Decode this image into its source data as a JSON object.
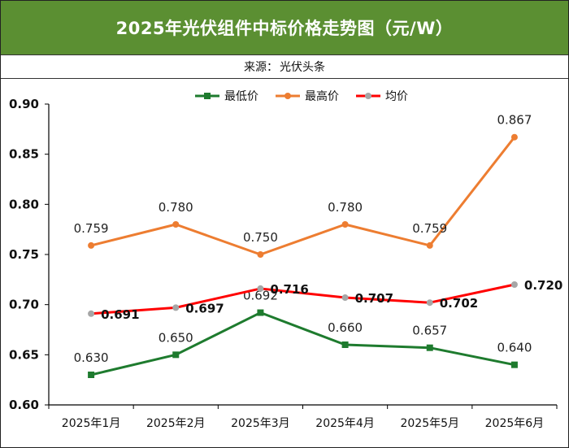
{
  "title": "2025年光伏组件中标价格走势图（元/W）",
  "source_label": "来源：",
  "source_value": "光伏头条",
  "colors": {
    "title_bg": "#5b8f32",
    "min_series": "#1e7b2e",
    "max_series": "#ed7d31",
    "avg_line": "#ff0000",
    "avg_marker": "#a6a6a6"
  },
  "chart_data": {
    "type": "line",
    "title": "2025年光伏组件中标价格走势图（元/W）",
    "categories": [
      "2025年1月",
      "2025年2月",
      "2025年3月",
      "2025年4月",
      "2025年5月",
      "2025年6月"
    ],
    "ylim": [
      0.6,
      0.9
    ],
    "yticks": [
      "0.60",
      "0.65",
      "0.70",
      "0.75",
      "0.80",
      "0.85",
      "0.90"
    ],
    "legend_position": "top",
    "grid": false,
    "series": [
      {
        "name": "最低价",
        "values": [
          0.63,
          0.65,
          0.692,
          0.66,
          0.657,
          0.64
        ],
        "labels": [
          "0.630",
          "0.650",
          "0.692",
          "0.660",
          "0.657",
          "0.640"
        ],
        "color": "#1e7b2e",
        "marker": "square"
      },
      {
        "name": "最高价",
        "values": [
          0.759,
          0.78,
          0.75,
          0.78,
          0.759,
          0.867
        ],
        "labels": [
          "0.759",
          "0.780",
          "0.750",
          "0.780",
          "0.759",
          "0.867"
        ],
        "color": "#ed7d31",
        "marker": "circle"
      },
      {
        "name": "均价",
        "values": [
          0.691,
          0.697,
          0.716,
          0.707,
          0.702,
          0.72
        ],
        "labels": [
          "0.691",
          "0.697",
          "0.716",
          "0.707",
          "0.702",
          "0.720"
        ],
        "color": "#ff0000",
        "marker": "circle",
        "marker_color": "#a6a6a6",
        "label_bold": true
      }
    ]
  }
}
